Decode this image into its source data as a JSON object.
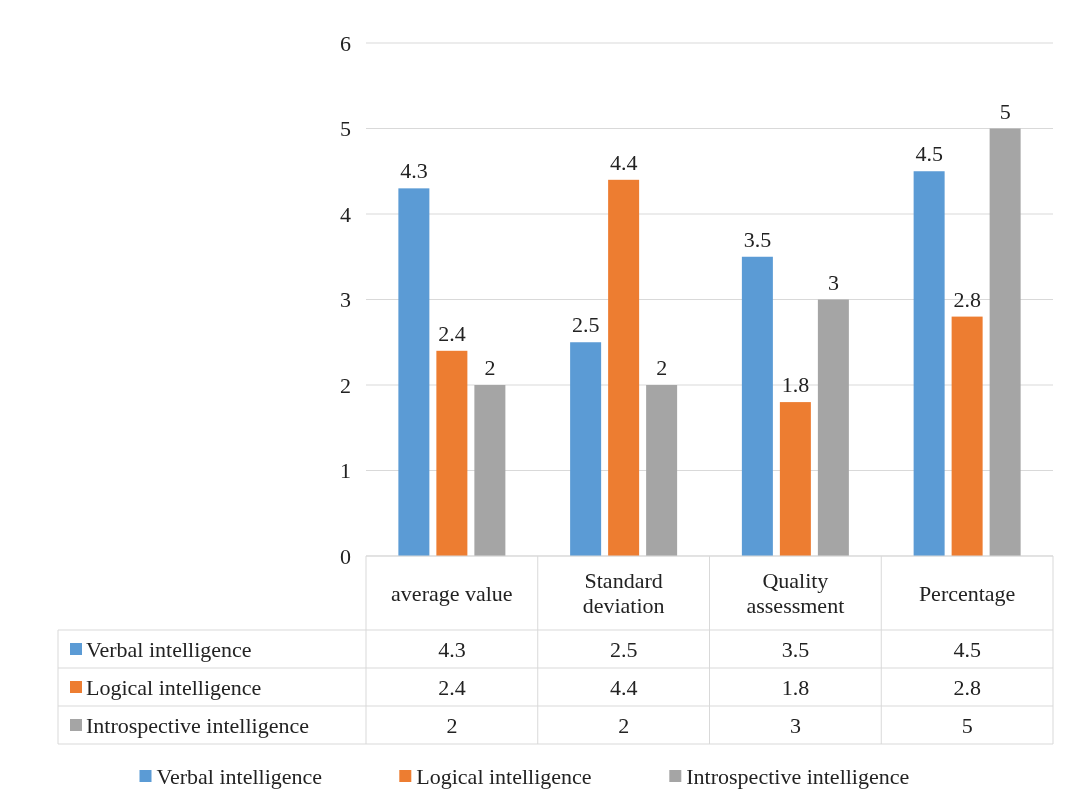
{
  "chart_data": {
    "type": "bar",
    "categories": [
      "average value",
      "Standard deviation",
      "Quality assessment",
      "Percentage"
    ],
    "series": [
      {
        "name": "Verbal intelligence",
        "color": "#5b9bd5",
        "values": [
          4.3,
          2.5,
          3.5,
          4.5
        ],
        "value_labels": [
          "4.3",
          "2.5",
          "3.5",
          "4.5"
        ]
      },
      {
        "name": "Logical intelligence",
        "color": "#ed7d31",
        "values": [
          2.4,
          4.4,
          1.8,
          2.8
        ],
        "value_labels": [
          "2.4",
          "4.4",
          "1.8",
          "2.8"
        ]
      },
      {
        "name": "Introspective intelligence",
        "color": "#a5a5a5",
        "values": [
          2,
          2,
          3,
          5
        ],
        "value_labels": [
          "2",
          "2",
          "3",
          "5"
        ]
      }
    ],
    "ylim": [
      0,
      6
    ],
    "yticks": [
      0,
      1,
      2,
      3,
      4,
      5,
      6
    ],
    "grid": "y",
    "legend": "bottom",
    "annotations": [
      "4.3",
      "2.5",
      "3.5",
      "4.5",
      "2.4",
      "4.4",
      "1.8",
      "2.8",
      "2",
      "2",
      "3",
      "5"
    ]
  }
}
